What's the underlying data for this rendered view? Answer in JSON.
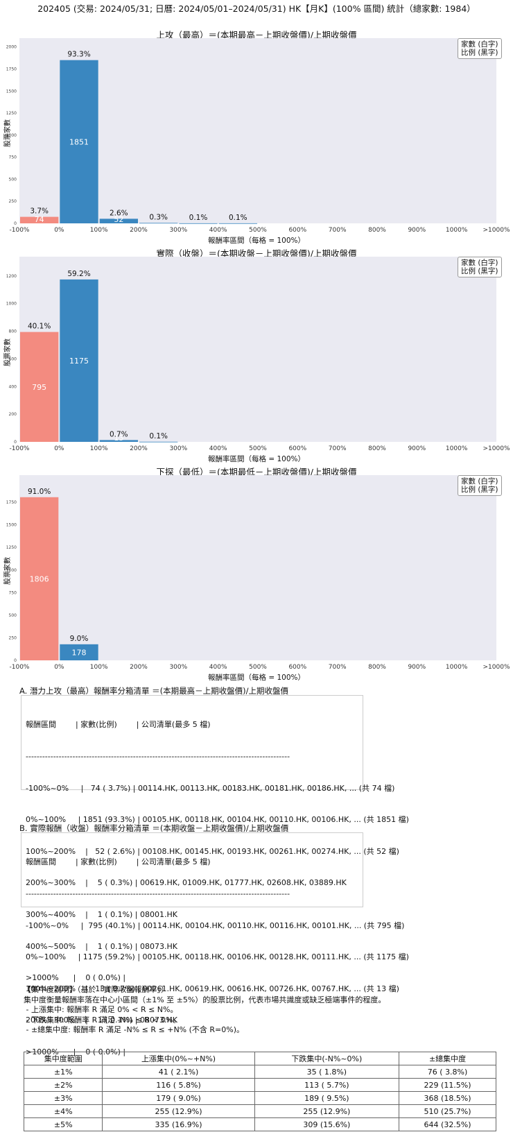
{
  "header": {
    "title": "202405 (交易: 2024/05/31; 日曆: 2024/05/01–2024/05/31) HK【月K】(100% 區間) 統計（總家數: 1984）"
  },
  "common": {
    "ylabel": "股票家數",
    "xlabel": "報酬率區間（每格 = 100%）",
    "legend_line1": "家數 (白字)",
    "legend_line2": "比例 (黑字)"
  },
  "colors": {
    "plot_bg": "#eaeaf2",
    "positive": "#3a87c0",
    "negative": "#f38b80"
  },
  "chart_data": [
    {
      "type": "bar",
      "title": "上攻（最高）＝(本期最高－上期收盤價)/上期收盤價",
      "categories": [
        "-100%~0%",
        "0%~100%",
        "100%~200%",
        "200%~300%",
        "300%~400%",
        "400%~500%",
        "500%~600%",
        "600%~700%",
        "700%~800%",
        "800%~900%",
        "900%~1000%",
        ">1000%"
      ],
      "values": [
        74,
        1851,
        52,
        5,
        1,
        1,
        0,
        0,
        0,
        0,
        0,
        0
      ],
      "value_labels": [
        "74",
        "1851",
        "52",
        "",
        "",
        "",
        "",
        "",
        "",
        "",
        "",
        ""
      ],
      "pct_labels": [
        "3.7%",
        "93.3%",
        "2.6%",
        "0.3%",
        "0.1%",
        "0.1%",
        "",
        "",
        "",
        "",
        "",
        ""
      ],
      "x_ticks": [
        "-100%",
        "0%",
        "100%",
        "200%",
        "300%",
        "400%",
        "500%",
        "600%",
        "700%",
        "800%",
        "900%",
        "1000%",
        ">1000%"
      ],
      "y_ticks": [
        0,
        250,
        500,
        750,
        1000,
        1250,
        1500,
        1750,
        2000
      ],
      "ylim": [
        0,
        2100
      ],
      "legend": "top-right",
      "grid": false
    },
    {
      "type": "bar",
      "title": "實際（收盤）＝(本期收盤－上期收盤價)/上期收盤價",
      "categories": [
        "-100%~0%",
        "0%~100%",
        "100%~200%",
        "200%~300%",
        "300%~400%",
        "400%~500%",
        "500%~600%",
        "600%~700%",
        "700%~800%",
        "800%~900%",
        "900%~1000%",
        ">1000%"
      ],
      "values": [
        795,
        1175,
        13,
        1,
        0,
        0,
        0,
        0,
        0,
        0,
        0,
        0
      ],
      "value_labels": [
        "795",
        "1175",
        "13",
        "",
        "",
        "",
        "",
        "",
        "",
        "",
        "",
        ""
      ],
      "pct_labels": [
        "40.1%",
        "59.2%",
        "0.7%",
        "0.1%",
        "",
        "",
        "",
        "",
        "",
        "",
        "",
        ""
      ],
      "x_ticks": [
        "-100%",
        "0%",
        "100%",
        "200%",
        "300%",
        "400%",
        "500%",
        "600%",
        "700%",
        "800%",
        "900%",
        "1000%",
        ">1000%"
      ],
      "y_ticks": [
        0,
        200,
        400,
        600,
        800,
        1000,
        1200
      ],
      "ylim": [
        0,
        1340
      ],
      "legend": "top-right",
      "grid": false
    },
    {
      "type": "bar",
      "title": "下探（最低）＝(本期最低－上期收盤價)/上期收盤價",
      "categories": [
        "-100%~0%",
        "0%~100%",
        "100%~200%",
        "200%~300%",
        "300%~400%",
        "400%~500%",
        "500%~600%",
        "600%~700%",
        "700%~800%",
        "800%~900%",
        "900%~1000%",
        ">1000%"
      ],
      "values": [
        1806,
        178,
        0,
        0,
        0,
        0,
        0,
        0,
        0,
        0,
        0,
        0
      ],
      "value_labels": [
        "1806",
        "178",
        "",
        "",
        "",
        "",
        "",
        "",
        "",
        "",
        "",
        ""
      ],
      "pct_labels": [
        "91.0%",
        "9.0%",
        "",
        "",
        "",
        "",
        "",
        "",
        "",
        "",
        "",
        ""
      ],
      "x_ticks": [
        "-100%",
        "0%",
        "100%",
        "200%",
        "300%",
        "400%",
        "500%",
        "600%",
        "700%",
        "800%",
        "900%",
        "1000%",
        ">1000%"
      ],
      "y_ticks": [
        0,
        250,
        500,
        750,
        1000,
        1250,
        1500,
        1750
      ],
      "ylim": [
        0,
        2050
      ],
      "legend": "top-right",
      "grid": false
    }
  ],
  "section_a": {
    "heading": "A. 潛力上攻（最高）報酬率分箱清單 ＝(本期最高－上期收盤價)/上期收盤價",
    "lines": [
      "報酬區間        | 家數(比例)        | 公司清單(最多 5 檔)",
      "------------------------------------------------------------------------------------------------",
      "-100%~0%     |   74 ( 3.7%) | 00114.HK, 00113.HK, 00183.HK, 00181.HK, 00186.HK, ... (共 74 檔)",
      "0%~100%     | 1851 (93.3%) | 00105.HK, 00118.HK, 00104.HK, 00110.HK, 00106.HK, ... (共 1851 檔)",
      "100%~200%    |   52 ( 2.6%) | 00108.HK, 00145.HK, 00193.HK, 00261.HK, 00274.HK, ... (共 52 檔)",
      "200%~300%    |    5 ( 0.3%) | 00619.HK, 01009.HK, 01777.HK, 02608.HK, 03889.HK",
      "300%~400%    |    1 ( 0.1%) | 08001.HK",
      "400%~500%    |    1 ( 0.1%) | 08073.HK",
      ">1000%      |    0 ( 0.0%) |"
    ]
  },
  "section_b": {
    "heading": "B. 實際報酬（收盤）報酬率分箱清單 ＝(本期收盤－上期收盤價)/上期收盤價",
    "lines": [
      "報酬區間        | 家數(比例)        | 公司清單(最多 5 檔)",
      "------------------------------------------------------------------------------------------------",
      "-100%~0%     |  795 (40.1%) | 00114.HK, 00104.HK, 00110.HK, 00116.HK, 00101.HK, ... (共 795 檔)",
      "0%~100%     | 1175 (59.2%) | 00105.HK, 00118.HK, 00106.HK, 00128.HK, 00111.HK, ... (共 1175 檔)",
      "100%~200%    |   13 ( 0.7%) | 00261.HK, 00619.HK, 00616.HK, 00726.HK, 00767.HK, ... (共 13 檔)",
      "200%~300%    |    1 ( 0.1%) | 08073.HK",
      ">1000%      |    0 ( 0.0%) |"
    ]
  },
  "concentration": {
    "lines": [
      "【集中度說明】（基於「實際收盤報酬率」）",
      "集中度衡量報酬率落在中心小區間（±1% 至 ±5%）的股票比例，代表市場共識度或缺乏極端事件的程度。",
      " - 上漲集中: 報酬率 R 滿足 0% < R ≤ N%。",
      " - 下跌集中: 報酬率 R 滿足 -N% ≤ R < 0%。",
      " - ±總集中度: 報酬率 R 滿足 -N% ≤ R ≤ +N% (不含 R=0%)。"
    ],
    "headers": [
      "集中度範圍",
      "上漲集中(0%~+N%)",
      "下跌集中(-N%~0%)",
      "±總集中度"
    ],
    "rows": [
      [
        "±1%",
        "41 ( 2.1%)",
        "35 ( 1.8%)",
        "76 ( 3.8%)"
      ],
      [
        "±2%",
        "116 ( 5.8%)",
        "113 ( 5.7%)",
        "229 (11.5%)"
      ],
      [
        "±3%",
        "179 ( 9.0%)",
        "189 ( 9.5%)",
        "368 (18.5%)"
      ],
      [
        "±4%",
        "255 (12.9%)",
        "255 (12.9%)",
        "510 (25.7%)"
      ],
      [
        "±5%",
        "335 (16.9%)",
        "309 (15.6%)",
        "644 (32.5%)"
      ]
    ]
  }
}
